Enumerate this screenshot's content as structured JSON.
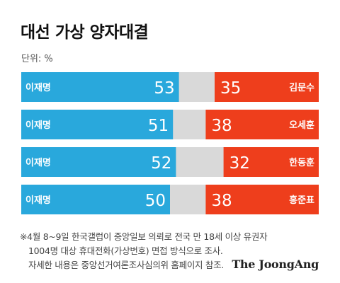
{
  "title": "대선 가상 양자대결",
  "unit": "단위: %",
  "chart_data": {
    "type": "bar",
    "stacked": true,
    "orientation": "horizontal",
    "xlim": [
      0,
      100
    ],
    "grid": false,
    "categories": [
      "김문수",
      "오세훈",
      "한동훈",
      "홍준표"
    ],
    "series": [
      {
        "name": "이재명",
        "values": [
          53,
          51,
          52,
          50
        ],
        "color": "#29a8dc"
      },
      {
        "name": "",
        "values": [
          35,
          38,
          32,
          38
        ],
        "color": "#ee3e1c"
      }
    ],
    "rest_color": "#d9d9d9"
  },
  "footnote": {
    "line1": "※4월 8~9일 한국갤럽이 중앙일보 의뢰로 전국 만 18세 이상 유권자",
    "line2": "1004명 대상 휴대전화(가상번호) 면접 방식으로 조사.",
    "line3": "자세한 내용은 중앙선거여론조사심의위 홈페이지 참조."
  },
  "brand": "The JoongAng"
}
